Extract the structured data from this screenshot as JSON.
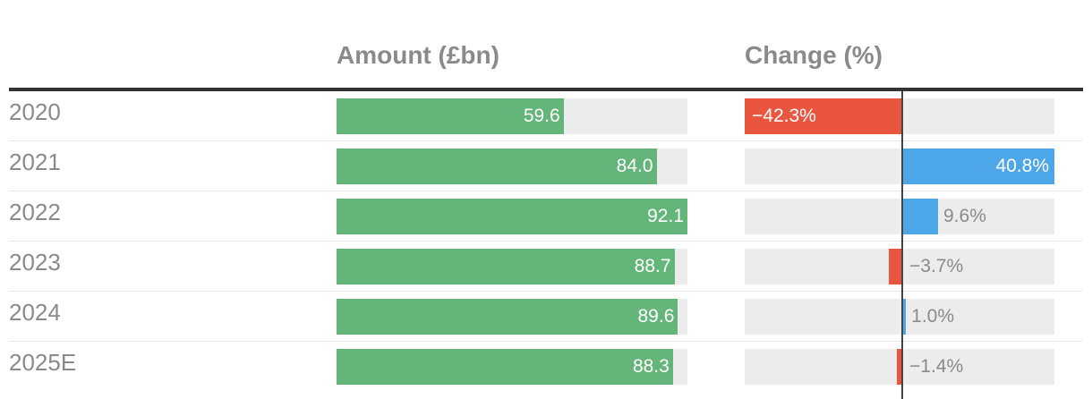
{
  "chart_data": {
    "type": "table",
    "columns": [
      {
        "key": "amount",
        "label": "Amount (£bn)"
      },
      {
        "key": "change",
        "label": "Change (%)"
      }
    ],
    "rows": [
      {
        "label": "2020",
        "amount": 59.6,
        "amount_label": "59.6",
        "change": -42.3,
        "change_label": "−42.3%"
      },
      {
        "label": "2021",
        "amount": 84.0,
        "amount_label": "84.0",
        "change": 40.8,
        "change_label": "40.8%"
      },
      {
        "label": "2022",
        "amount": 92.1,
        "amount_label": "92.1",
        "change": 9.6,
        "change_label": "9.6%"
      },
      {
        "label": "2023",
        "amount": 88.7,
        "amount_label": "88.7",
        "change": -3.7,
        "change_label": "−3.7%"
      },
      {
        "label": "2024",
        "amount": 89.6,
        "amount_label": "89.6",
        "change": 1.0,
        "change_label": "1.0%"
      },
      {
        "label": "2025E",
        "amount": 88.3,
        "amount_label": "88.3",
        "change": -1.4,
        "change_label": "−1.4%"
      }
    ],
    "amount_axis": {
      "min": 0,
      "max": 92.1
    },
    "change_axis": {
      "min": -42.3,
      "max": 40.8
    },
    "colors": {
      "amount_bar": "#64b57a",
      "positive_change": "#4da6e8",
      "negative_change": "#ea553f",
      "track": "#ececec",
      "zero_line": "#444444",
      "label_text": "#8a8a8a",
      "value_text_inside": "#ffffff",
      "value_text_outside": "#8a8a8a"
    }
  }
}
